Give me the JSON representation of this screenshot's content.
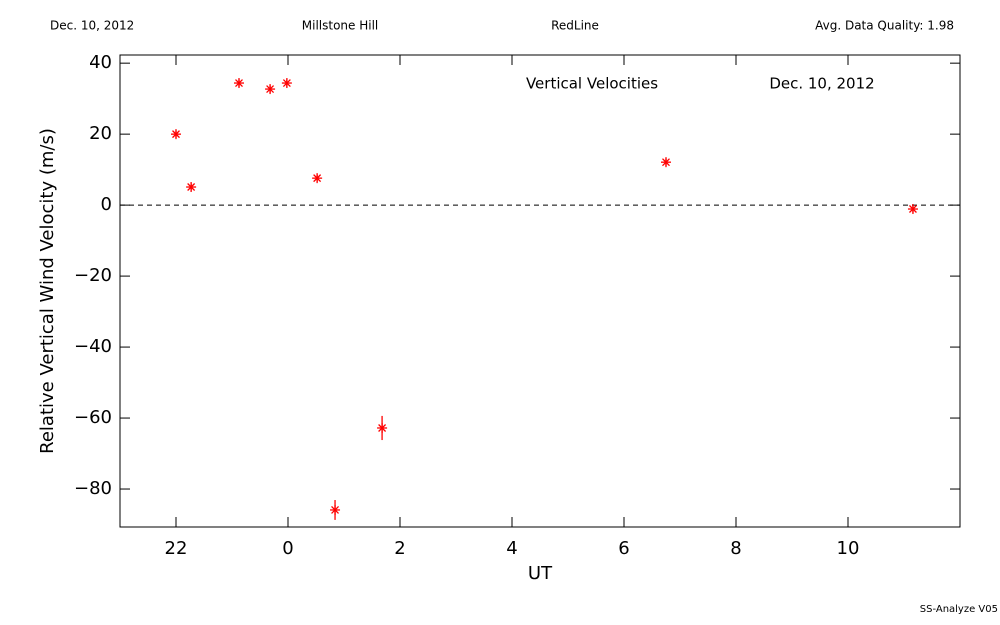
{
  "chart_data": {
    "type": "scatter",
    "header": [
      "Dec. 10, 2012",
      "Millstone Hill",
      "RedLine",
      "Avg. Data Quality: 1.98"
    ],
    "title": "Vertical Velocities",
    "subtitle": "Dec. 10, 2012",
    "footer": "SS-Analyze V05",
    "xlabel": "UT",
    "ylabel": "Relative Vertical Wind Velocity (m/s)",
    "series": [
      {
        "color": "#ff0000",
        "x": [
          -2.0,
          -1.73,
          -0.875,
          -0.32,
          -0.02,
          0.52,
          0.84,
          1.68,
          6.75,
          11.16
        ],
        "values": [
          20.0,
          5.1,
          34.4,
          32.7,
          34.4,
          7.6,
          -85.9,
          -62.8,
          12.1,
          -1.1
        ],
        "errors": [
          1.0,
          1.0,
          1.0,
          1.0,
          1.0,
          1.0,
          2.8,
          3.4,
          1.0,
          1.0
        ]
      }
    ],
    "xlim": [
      -3,
      12
    ],
    "xticks": [
      {
        "value": -2,
        "label": "22"
      },
      0,
      2,
      4,
      6,
      8,
      10
    ],
    "ylim": [
      -90.7,
      42.3
    ],
    "yticks": [
      {
        "value": -80,
        "label": "−80"
      },
      {
        "value": -60,
        "label": "−60"
      },
      {
        "value": -40,
        "label": "−40"
      },
      {
        "value": -20,
        "label": "−20"
      },
      0,
      20,
      40
    ],
    "hline": 0
  }
}
